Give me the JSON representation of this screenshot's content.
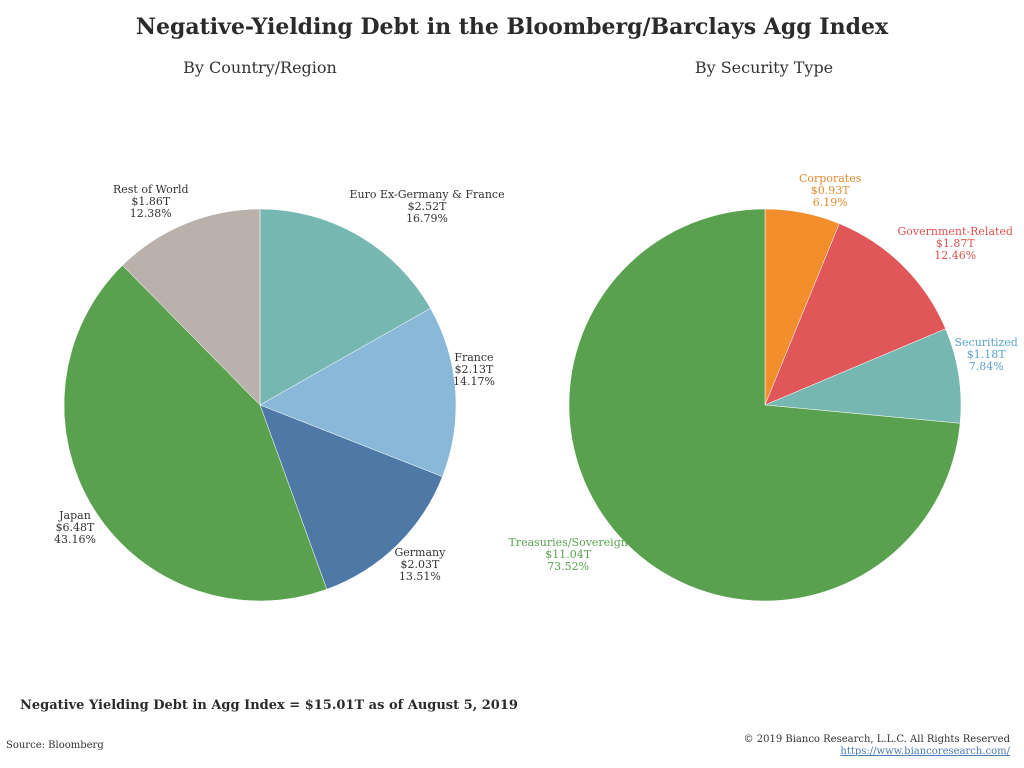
{
  "title": "Negative-Yielding Debt in the Bloomberg/Barclays Agg Index",
  "note": "Negative Yielding Debt in Agg Index = $15.01T as of August 5, 2019",
  "source": "Source: Bloomberg",
  "copyright": "© 2019 Bianco Research, L.L.C. All Rights Reserved",
  "website": "https://www.biancoresearch.com/",
  "chart_data": [
    {
      "type": "pie",
      "title": "By Country/Region",
      "slices": [
        {
          "label": "Euro Ex-Germany & France",
          "amount": "$2.52T",
          "value": 16.79,
          "pct": "16.79%",
          "color": "#76b7b2",
          "label_color": "#333333"
        },
        {
          "label": "France",
          "amount": "$2.13T",
          "value": 14.17,
          "pct": "14.17%",
          "color": "#8ab8d9",
          "label_color": "#333333"
        },
        {
          "label": "Germany",
          "amount": "$2.03T",
          "value": 13.51,
          "pct": "13.51%",
          "color": "#4e79a7",
          "label_color": "#333333"
        },
        {
          "label": "Japan",
          "amount": "$6.48T",
          "value": 43.16,
          "pct": "43.16%",
          "color": "#59a14f",
          "label_color": "#333333"
        },
        {
          "label": "Rest of World",
          "amount": "$1.86T",
          "value": 12.38,
          "pct": "12.38%",
          "color": "#bab0ac",
          "label_color": "#333333"
        }
      ]
    },
    {
      "type": "pie",
      "title": "By Security Type",
      "slices": [
        {
          "label": "Corporates",
          "amount": "$0.93T",
          "value": 6.19,
          "pct": "6.19%",
          "color": "#f28e2b",
          "label_color": "#e08a2e"
        },
        {
          "label": "Government-Related",
          "amount": "$1.87T",
          "value": 12.46,
          "pct": "12.46%",
          "color": "#e15759",
          "label_color": "#d9534f"
        },
        {
          "label": "Securitized",
          "amount": "$1.18T",
          "value": 7.84,
          "pct": "7.84%",
          "color": "#76b7b2",
          "label_color": "#5ba3c9"
        },
        {
          "label": "Treasuries/Sovereign",
          "amount": "$11.04T",
          "value": 73.52,
          "pct": "73.52%",
          "color": "#59a14f",
          "label_color": "#59a14f"
        }
      ]
    }
  ]
}
